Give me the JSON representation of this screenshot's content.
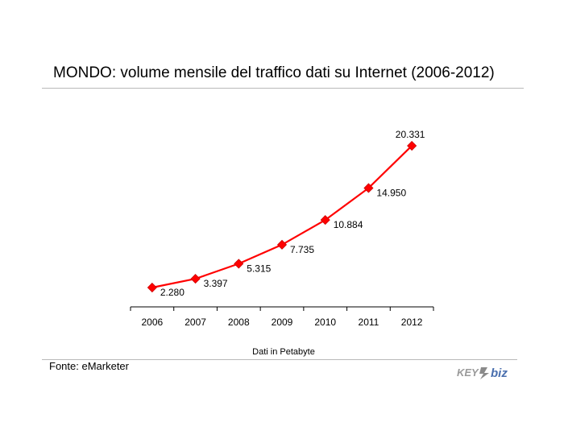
{
  "page": {
    "title": "MONDO: volume mensile del traffico dati su Internet (2006-2012)",
    "source": "Fonte: eMarketer",
    "logo_text": "KEY4biz"
  },
  "chart_data": {
    "type": "line",
    "title": "MONDO: volume mensile del traffico dati su Internet (2006-2012)",
    "xlabel": "Dati in Petabyte",
    "ylabel": "",
    "categories": [
      "2006",
      "2007",
      "2008",
      "2009",
      "2010",
      "2011",
      "2012"
    ],
    "values": [
      2280,
      3397,
      5315,
      7735,
      10884,
      14950,
      20331
    ],
    "value_labels": [
      "2.280",
      "3.397",
      "5.315",
      "7.735",
      "10.884",
      "14.950",
      "20.331"
    ],
    "ylim": [
      0,
      21500
    ],
    "grid": false,
    "legend": "none",
    "color": "#ff0000"
  }
}
